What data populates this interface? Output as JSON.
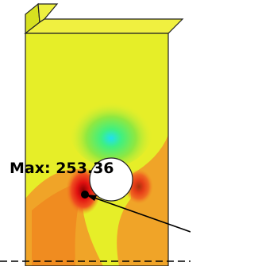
{
  "annotation": {
    "label": "Max: 253.36"
  }
}
